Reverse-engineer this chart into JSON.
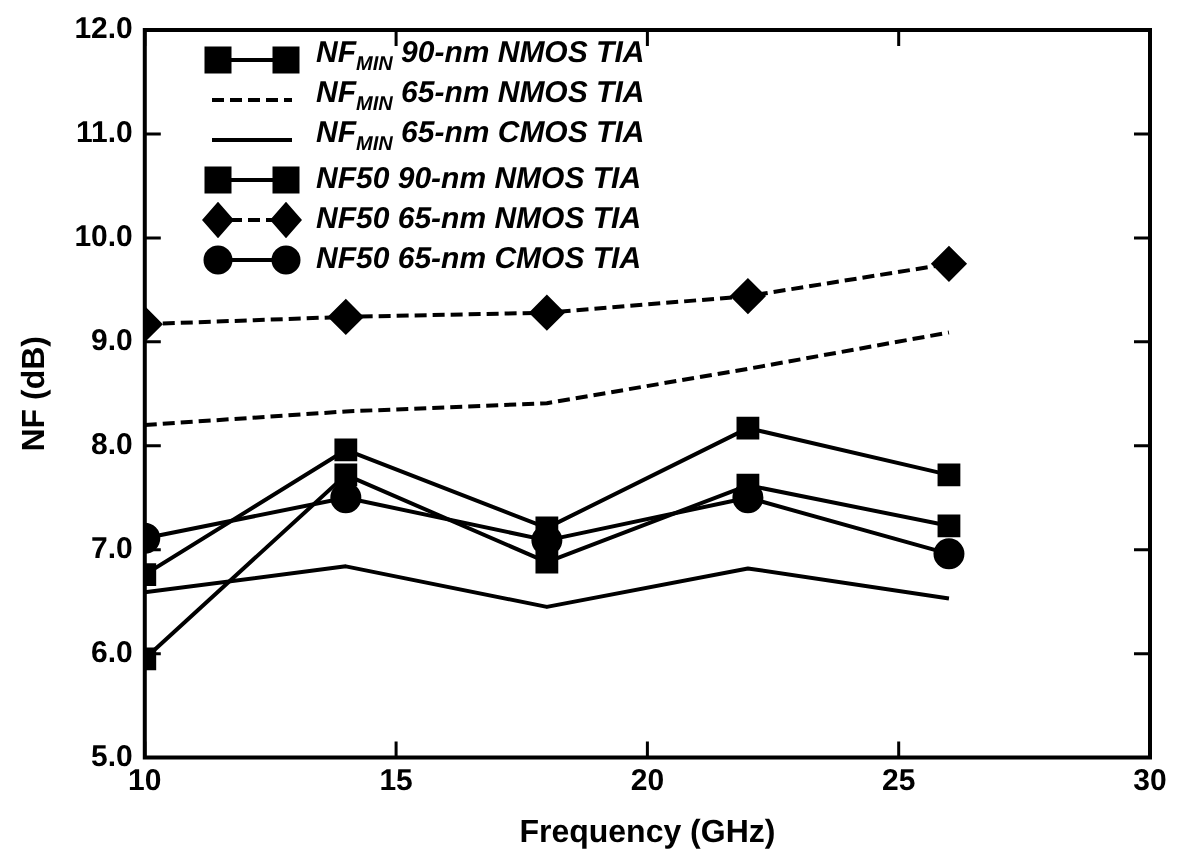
{
  "chart_data": {
    "type": "line",
    "xlabel": "Frequency (GHz)",
    "ylabel": "NF (dB)",
    "x": [
      10,
      14,
      18,
      22,
      26
    ],
    "xlim": [
      10,
      30
    ],
    "xticks": [
      10,
      15,
      20,
      25,
      30
    ],
    "ylim": [
      5,
      12
    ],
    "yticks": [
      {
        "value": 5,
        "label": "5.0"
      },
      {
        "value": 6,
        "label": "6.0"
      },
      {
        "value": 7,
        "label": "7.0"
      },
      {
        "value": 8,
        "label": "8.0"
      },
      {
        "value": 9,
        "label": "9.0"
      },
      {
        "value": 10,
        "label": "10.0"
      },
      {
        "value": 11,
        "label": "11.0"
      },
      {
        "value": 12,
        "label": "12.0"
      }
    ],
    "grid": false,
    "legend": "top left",
    "series": [
      {
        "name": "NF$_{MIN}$ 90-nm NMOS TIA",
        "color": "#000000",
        "marker": "square",
        "line_style": "solid",
        "values": [
          5.95,
          7.72,
          6.88,
          7.62,
          7.23
        ]
      },
      {
        "name": "NF$_{MIN}$ 65-nm NMOS TIA",
        "color": "#000000",
        "marker": "none",
        "line_style": "dashed",
        "values": [
          8.2,
          8.33,
          8.41,
          8.74,
          9.09
        ]
      },
      {
        "name": "NF$_{MIN}$ 65-nm CMOS TIA",
        "color": "#000000",
        "marker": "none",
        "line_style": "solid",
        "values": [
          6.59,
          6.84,
          6.45,
          6.82,
          6.53
        ]
      },
      {
        "name": "NF50 90-nm NMOS TIA",
        "color": "#000000",
        "marker": "square",
        "line_style": "solid",
        "values": [
          6.76,
          7.96,
          7.21,
          8.17,
          7.72
        ]
      },
      {
        "name": "NF50 65-nm NMOS TIA",
        "color": "#000000",
        "marker": "diamond",
        "line_style": "dashed",
        "values": [
          9.17,
          9.24,
          9.28,
          9.44,
          9.75
        ]
      },
      {
        "name": "NF50 65-nm CMOS TIA",
        "color": "#000000",
        "marker": "circle",
        "line_style": "solid",
        "values": [
          7.11,
          7.5,
          7.09,
          7.5,
          6.96
        ]
      }
    ]
  }
}
